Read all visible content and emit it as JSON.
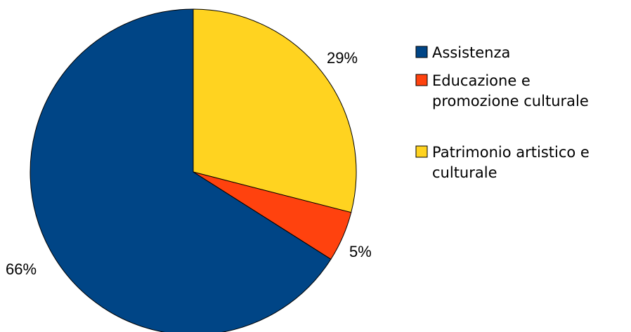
{
  "chart_data": {
    "type": "pie",
    "title": "",
    "categories": [
      "Assistenza",
      "Educazione e promozione culturale",
      "Patrimonio artistico e culturale"
    ],
    "values": [
      66,
      5,
      29
    ],
    "data_labels": [
      "66%",
      "5%",
      "29%"
    ],
    "colors": [
      "#004586",
      "#ff420e",
      "#ffd320"
    ],
    "legend": {
      "placement": "right",
      "entries": [
        {
          "lines": [
            "Assistenza"
          ]
        },
        {
          "lines": [
            "Educazione e",
            "promozione culturale"
          ]
        },
        {
          "lines": [
            "Patrimonio artistico e",
            "culturale"
          ]
        }
      ]
    },
    "start_angle": "12-o'clock",
    "direction": "clockwise",
    "slice_order": [
      "Patrimonio artistico e culturale",
      "Educazione e promozione culturale",
      "Assistenza"
    ]
  }
}
